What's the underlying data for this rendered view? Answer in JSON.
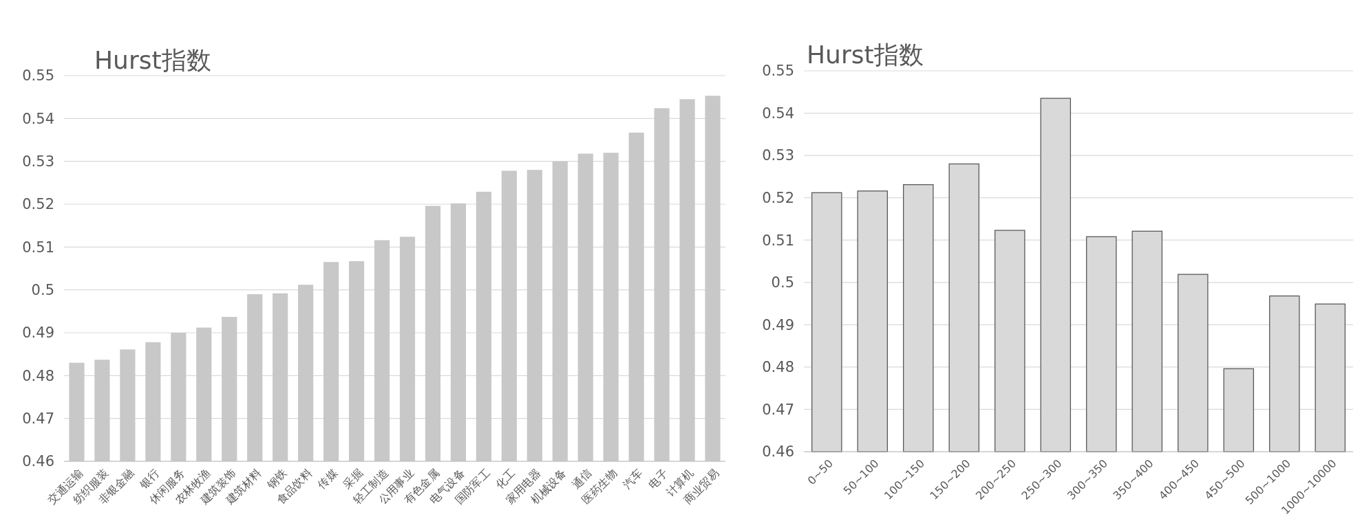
{
  "chart_data": [
    {
      "type": "bar",
      "title": "Hurst指数",
      "categories": [
        "交通运输",
        "纺织服装",
        "非银金融",
        "银行",
        "休闲服务",
        "农林牧渔",
        "建筑装饰",
        "建筑材料",
        "钢铁",
        "食品饮料",
        "传媒",
        "采掘",
        "轻工制造",
        "公用事业",
        "有色金属",
        "电气设备",
        "国防军工",
        "化工",
        "家用电器",
        "机械设备",
        "通信",
        "医药生物",
        "汽车",
        "电子",
        "计算机",
        "商业贸易"
      ],
      "values": [
        0.483,
        0.4837,
        0.4861,
        0.4878,
        0.49,
        0.4912,
        0.4937,
        0.499,
        0.4992,
        0.5012,
        0.5065,
        0.5067,
        0.5116,
        0.5124,
        0.5196,
        0.5202,
        0.5229,
        0.5278,
        0.528,
        0.53,
        0.5318,
        0.532,
        0.5367,
        0.5424,
        0.5445,
        0.5453
      ],
      "color": "#c8c8c8",
      "ylim": [
        0.46,
        0.55
      ],
      "yticks": [
        0.46,
        0.47,
        0.48,
        0.49,
        0.5,
        0.51,
        0.52,
        0.53,
        0.54,
        0.55
      ],
      "grid": "y"
    },
    {
      "type": "bar",
      "title": "Hurst指数",
      "categories": [
        "0~50",
        "50~100",
        "100~150",
        "150~200",
        "200~250",
        "250~300",
        "300~350",
        "350~400",
        "400~450",
        "450~500",
        "500~1000",
        "1000~10000"
      ],
      "values": [
        0.5212,
        0.5216,
        0.5231,
        0.528,
        0.5123,
        0.5435,
        0.5108,
        0.5121,
        0.5019,
        0.4796,
        0.4968,
        0.4949
      ],
      "color": "#d9d9d9",
      "ylim": [
        0.46,
        0.55
      ],
      "yticks": [
        0.46,
        0.47,
        0.48,
        0.49,
        0.5,
        0.51,
        0.52,
        0.53,
        0.54,
        0.55
      ],
      "grid": "y"
    }
  ]
}
